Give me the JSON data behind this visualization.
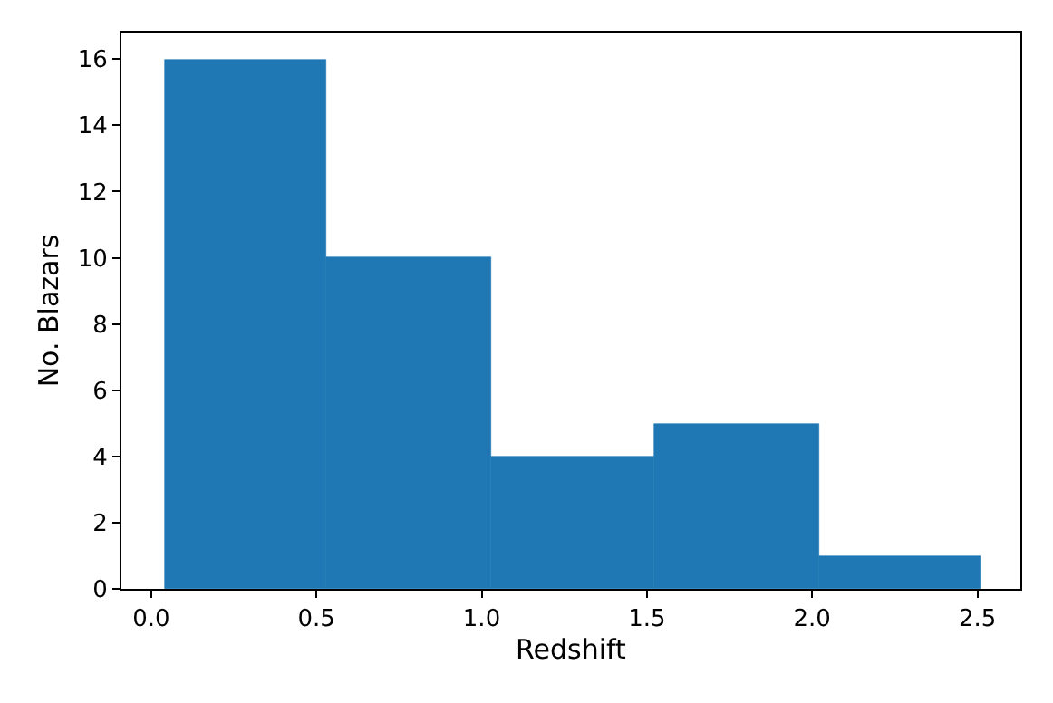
{
  "chart_data": {
    "type": "histogram",
    "xlabel": "Redshift",
    "ylabel": "No. Blazars",
    "bins": [
      0.04,
      0.53,
      1.03,
      1.52,
      2.02,
      2.51
    ],
    "values": [
      16,
      10,
      4,
      5,
      1
    ],
    "color": "#1f77b4",
    "xlim": [
      -0.09,
      2.63
    ],
    "xticks": [
      {
        "value": 0,
        "label": "0.0"
      },
      0.5,
      {
        "value": 1,
        "label": "1.0"
      },
      1.5,
      {
        "value": 2,
        "label": "2.0"
      },
      2.5
    ],
    "ylim": [
      0,
      16.8
    ],
    "yticks": [
      0,
      2,
      4,
      6,
      8,
      10,
      12,
      14,
      16
    ]
  }
}
